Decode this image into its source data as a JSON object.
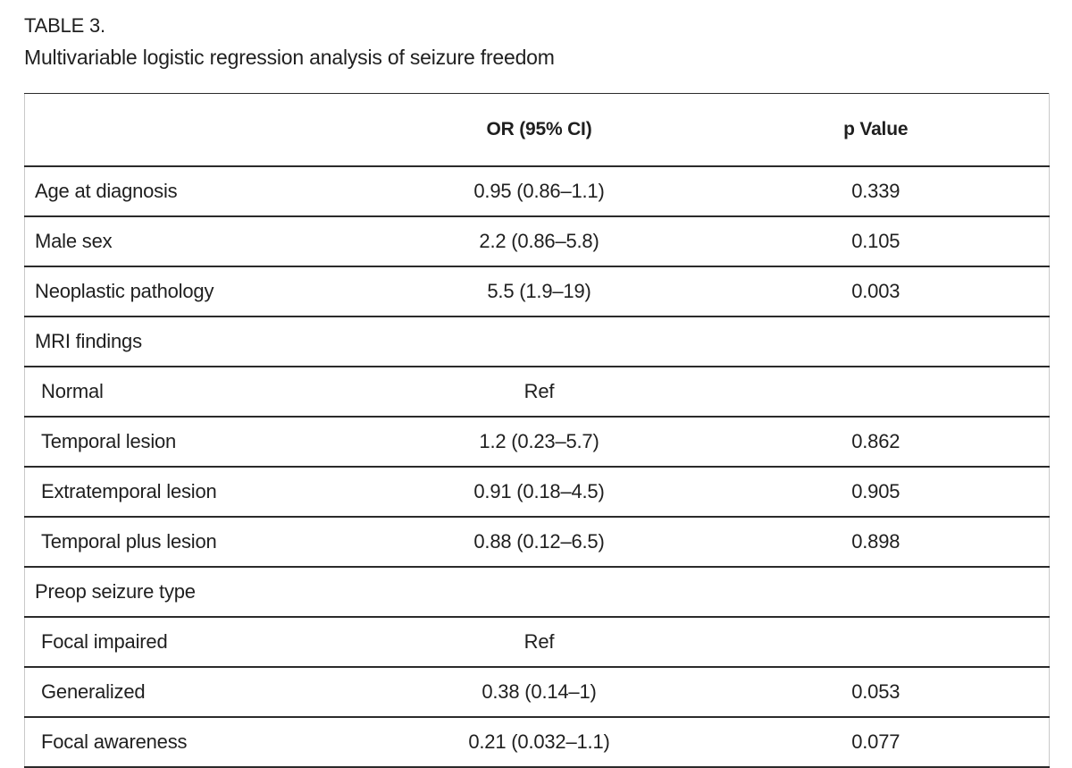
{
  "caption": {
    "label": "TABLE 3.",
    "title": "Multivariable logistic regression analysis of seizure freedom"
  },
  "colors": {
    "text": "#1f1f1f",
    "rule_horizontal": "#2b2b2b",
    "rule_vertical": "#c9c9c9",
    "background": "#ffffff"
  },
  "table": {
    "columns": [
      "",
      "OR (95% CI)",
      "p Value"
    ],
    "rows": [
      {
        "label": "Age at diagnosis",
        "or": "0.95 (0.86–1.1)",
        "p": "0.339"
      },
      {
        "label": "Male sex",
        "or": "2.2 (0.86–5.8)",
        "p": "0.105"
      },
      {
        "label": "Neoplastic pathology",
        "or": "5.5 (1.9–19)",
        "p": "0.003"
      },
      {
        "label": "MRI findings"
      },
      {
        "label": "Normal",
        "or": "Ref"
      },
      {
        "label": "Temporal lesion",
        "or": "1.2 (0.23–5.7)",
        "p": "0.862"
      },
      {
        "label": "Extratemporal lesion",
        "or": "0.91 (0.18–4.5)",
        "p": "0.905"
      },
      {
        "label": "Temporal plus lesion",
        "or": "0.88 (0.12–6.5)",
        "p": "0.898"
      },
      {
        "label": "Preop seizure type"
      },
      {
        "label": "Focal impaired",
        "or": "Ref"
      },
      {
        "label": "Generalized",
        "or": "0.38 (0.14–1)",
        "p": "0.053"
      },
      {
        "label": "Focal awareness",
        "or": "0.21 (0.032–1.1)",
        "p": "0.077"
      }
    ]
  }
}
